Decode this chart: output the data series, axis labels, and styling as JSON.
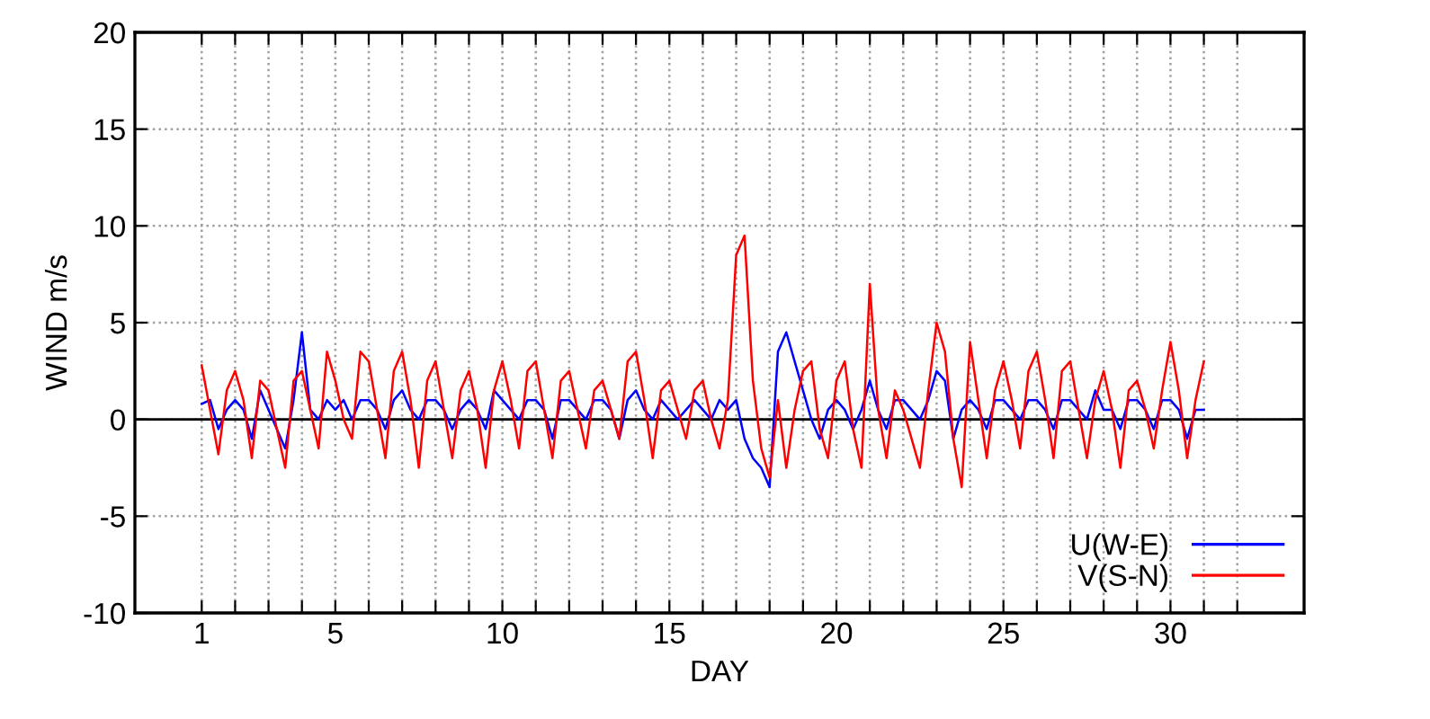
{
  "chart_data": {
    "type": "line",
    "xlabel": "DAY",
    "ylabel": "WIND m/s",
    "x": [
      1,
      1.25,
      1.5,
      1.75,
      2,
      2.25,
      2.5,
      2.75,
      3,
      3.25,
      3.5,
      3.75,
      4,
      4.25,
      4.5,
      4.75,
      5,
      5.25,
      5.5,
      5.75,
      6,
      6.25,
      6.5,
      6.75,
      7,
      7.25,
      7.5,
      7.75,
      8,
      8.25,
      8.5,
      8.75,
      9,
      9.25,
      9.5,
      9.75,
      10,
      10.25,
      10.5,
      10.75,
      11,
      11.25,
      11.5,
      11.75,
      12,
      12.25,
      12.5,
      12.75,
      13,
      13.25,
      13.5,
      13.75,
      14,
      14.25,
      14.5,
      14.75,
      15,
      15.25,
      15.5,
      15.75,
      16,
      16.25,
      16.5,
      16.75,
      17,
      17.25,
      17.5,
      17.75,
      18,
      18.25,
      18.5,
      18.75,
      19,
      19.25,
      19.5,
      19.75,
      20,
      20.25,
      20.5,
      20.75,
      21,
      21.25,
      21.5,
      21.75,
      22,
      22.25,
      22.5,
      22.75,
      23,
      23.25,
      23.5,
      23.75,
      24,
      24.25,
      24.5,
      24.75,
      25,
      25.25,
      25.5,
      25.75,
      26,
      26.25,
      26.5,
      26.75,
      27,
      27.25,
      27.5,
      27.75,
      28,
      28.25,
      28.5,
      28.75,
      29,
      29.25,
      29.5,
      29.75,
      30,
      30.25,
      30.5,
      30.75,
      31
    ],
    "series": [
      {
        "name": "U(W-E)",
        "color": "#0000ff",
        "values": [
          0.8,
          1.0,
          -0.5,
          0.5,
          1.0,
          0.5,
          -1.0,
          1.5,
          0.5,
          -0.5,
          -1.5,
          1.0,
          4.5,
          0.5,
          0.0,
          1.0,
          0.5,
          1.0,
          0.0,
          1.0,
          1.0,
          0.5,
          -0.5,
          1.0,
          1.5,
          0.5,
          0.0,
          1.0,
          1.0,
          0.5,
          -0.5,
          0.5,
          1.0,
          0.5,
          -0.5,
          1.5,
          1.0,
          0.5,
          0.0,
          1.0,
          1.0,
          0.5,
          -1.0,
          1.0,
          1.0,
          0.5,
          0.0,
          1.0,
          1.0,
          0.5,
          -1.0,
          1.0,
          1.5,
          0.5,
          0.0,
          1.0,
          0.5,
          0.0,
          0.5,
          1.0,
          0.5,
          0.0,
          1.0,
          0.5,
          1.0,
          -1.0,
          -2.0,
          -2.5,
          -3.5,
          3.5,
          4.5,
          3.0,
          1.5,
          0.0,
          -1.0,
          0.5,
          1.0,
          0.5,
          -0.5,
          0.5,
          2.0,
          0.5,
          -0.5,
          1.0,
          1.0,
          0.5,
          0.0,
          1.0,
          2.5,
          2.0,
          -1.0,
          0.5,
          1.0,
          0.5,
          -0.5,
          1.0,
          1.0,
          0.5,
          0.0,
          1.0,
          1.0,
          0.5,
          -0.5,
          1.0,
          1.0,
          0.5,
          0.0,
          1.5,
          0.5,
          0.5,
          -0.5,
          1.0,
          1.0,
          0.5,
          -0.5,
          1.0,
          1.0,
          0.5,
          -1.0,
          0.5,
          0.5
        ]
      },
      {
        "name": "V(S-N)",
        "color": "#ff0000",
        "values": [
          2.8,
          0.5,
          -1.8,
          1.5,
          2.5,
          1.0,
          -2.0,
          2.0,
          1.5,
          -0.5,
          -2.5,
          2.0,
          2.5,
          0.5,
          -1.5,
          3.5,
          2.0,
          0.0,
          -1.0,
          3.5,
          3.0,
          0.5,
          -2.0,
          2.5,
          3.5,
          1.0,
          -2.5,
          2.0,
          3.0,
          0.5,
          -2.0,
          1.5,
          2.5,
          0.5,
          -2.5,
          1.5,
          3.0,
          1.0,
          -1.5,
          2.5,
          3.0,
          0.5,
          -2.0,
          2.0,
          2.5,
          0.5,
          -1.5,
          1.5,
          2.0,
          0.5,
          -1.0,
          3.0,
          3.5,
          1.0,
          -2.0,
          1.5,
          2.0,
          0.5,
          -1.0,
          1.5,
          2.0,
          0.0,
          -1.5,
          1.0,
          8.5,
          9.5,
          2.0,
          -1.5,
          -3.0,
          1.0,
          -2.5,
          0.5,
          2.5,
          3.0,
          -0.5,
          -2.0,
          2.0,
          3.0,
          -0.5,
          -2.5,
          7.0,
          0.5,
          -2.0,
          1.5,
          0.5,
          -1.0,
          -2.5,
          1.5,
          5.0,
          3.5,
          -1.0,
          -3.5,
          4.0,
          1.0,
          -2.0,
          1.5,
          3.0,
          1.0,
          -1.5,
          2.5,
          3.5,
          1.0,
          -2.0,
          2.5,
          3.0,
          0.5,
          -2.0,
          1.0,
          2.5,
          0.5,
          -2.5,
          1.5,
          2.0,
          0.5,
          -1.5,
          1.5,
          4.0,
          1.5,
          -2.0,
          1.0,
          3.0
        ]
      }
    ],
    "xlim": [
      -1,
      34
    ],
    "xticks": [
      {
        "value": 1,
        "label": "1"
      },
      {
        "value": 2,
        "label": null
      },
      {
        "value": 3,
        "label": null
      },
      {
        "value": 4,
        "label": null
      },
      {
        "value": 5,
        "label": "5"
      },
      {
        "value": 6,
        "label": null
      },
      {
        "value": 7,
        "label": null
      },
      {
        "value": 8,
        "label": null
      },
      {
        "value": 9,
        "label": null
      },
      {
        "value": 10,
        "label": "10"
      },
      {
        "value": 11,
        "label": null
      },
      {
        "value": 12,
        "label": null
      },
      {
        "value": 13,
        "label": null
      },
      {
        "value": 14,
        "label": null
      },
      {
        "value": 15,
        "label": "15"
      },
      {
        "value": 16,
        "label": null
      },
      {
        "value": 17,
        "label": null
      },
      {
        "value": 18,
        "label": null
      },
      {
        "value": 19,
        "label": null
      },
      {
        "value": 20,
        "label": "20"
      },
      {
        "value": 21,
        "label": null
      },
      {
        "value": 22,
        "label": null
      },
      {
        "value": 23,
        "label": null
      },
      {
        "value": 24,
        "label": null
      },
      {
        "value": 25,
        "label": "25"
      },
      {
        "value": 26,
        "label": null
      },
      {
        "value": 27,
        "label": null
      },
      {
        "value": 28,
        "label": null
      },
      {
        "value": 29,
        "label": null
      },
      {
        "value": 30,
        "label": "30"
      },
      {
        "value": 31,
        "label": null
      },
      {
        "value": 32,
        "label": null
      }
    ],
    "ylim": [
      -10,
      20
    ],
    "yticks": [
      -10,
      -5,
      0,
      5,
      10,
      15,
      20
    ],
    "ref_lines": [
      {
        "axis": "y",
        "value": 0,
        "color": "#000000",
        "line_style": "solid"
      }
    ],
    "grid": true,
    "legend": "bottom right",
    "marker": "none",
    "line_style": "solid"
  }
}
